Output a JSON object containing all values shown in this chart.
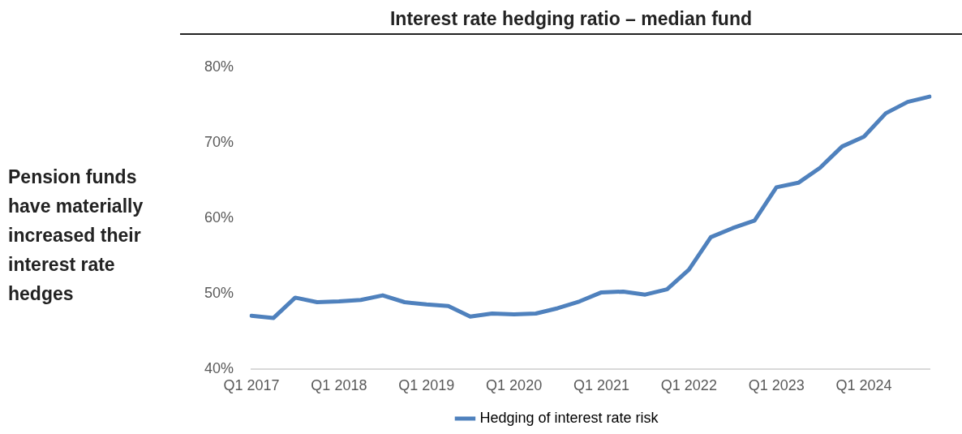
{
  "chart_data": {
    "type": "line",
    "title": "Interest rate hedging ratio – median fund",
    "categories": [
      "Q1 2017",
      null,
      null,
      null,
      "Q1 2018",
      null,
      null,
      null,
      "Q1 2019",
      null,
      null,
      null,
      "Q1 2020",
      null,
      null,
      null,
      "Q1 2021",
      null,
      null,
      null,
      "Q1 2022",
      null,
      null,
      null,
      "Q1 2023",
      null,
      null,
      null,
      "Q1 2024",
      null,
      null,
      null
    ],
    "series": [
      {
        "name": "Hedging of interest rate risk",
        "color": "#4f81bd",
        "values": [
          47.1,
          46.8,
          49.5,
          48.9,
          49.0,
          49.2,
          49.8,
          48.9,
          48.6,
          48.4,
          47.0,
          47.4,
          47.3,
          47.4,
          48.1,
          49.0,
          50.2,
          50.3,
          49.9,
          50.6,
          53.2,
          57.5,
          58.7,
          59.7,
          64.1,
          64.7,
          66.7,
          69.5,
          70.8,
          73.9,
          75.4,
          76.1
        ]
      }
    ],
    "ylim": [
      40,
      80
    ],
    "yticks": [
      {
        "value": 40,
        "label": "40%"
      },
      {
        "value": 50,
        "label": "50%"
      },
      {
        "value": 60,
        "label": "60%"
      },
      {
        "value": 70,
        "label": "70%"
      },
      {
        "value": 80,
        "label": "80%"
      }
    ],
    "annotations": [
      "Pension funds have materially increased their interest rate hedges"
    ],
    "grid": false,
    "legend": "bottom",
    "marker": "none",
    "line_style": "solid"
  }
}
